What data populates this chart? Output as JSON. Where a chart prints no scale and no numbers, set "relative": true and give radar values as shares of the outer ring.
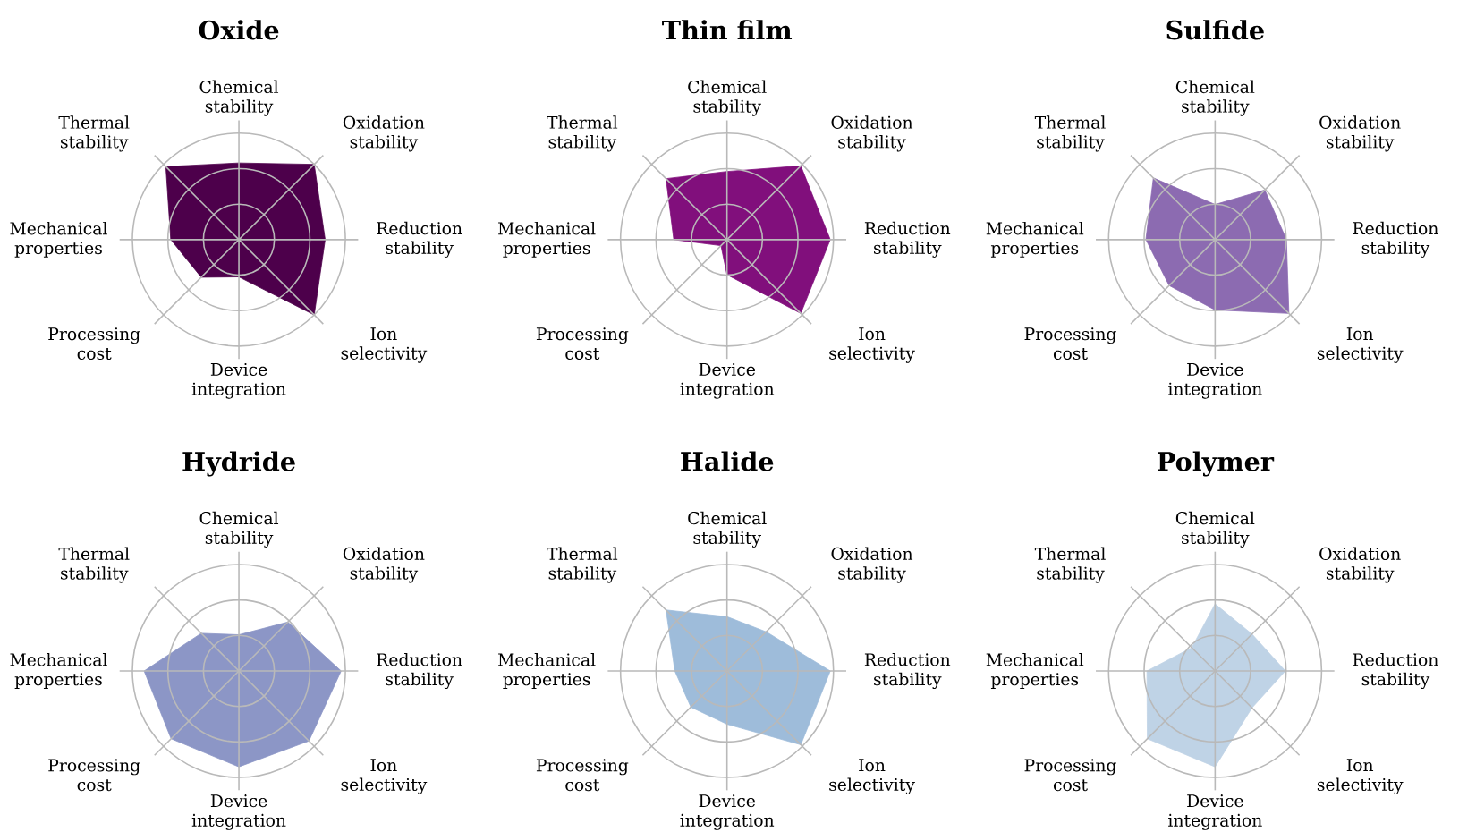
{
  "chart_data": [
    {
      "type": "radar",
      "title": "Oxide",
      "relative": true,
      "grid": true,
      "categories": [
        "Chemical stability",
        "Oxidation stability",
        "Reduction stability",
        "Ion selectivity",
        "Device integration",
        "Processing cost",
        "Mechanical properties",
        "Thermal stability"
      ],
      "series": [
        {
          "color": "#4d004b",
          "values": [
            0.72,
            1.0,
            0.81,
            1.0,
            0.35,
            0.5,
            0.64,
            0.97
          ]
        }
      ]
    },
    {
      "type": "radar",
      "title": "Thin film",
      "relative": true,
      "grid": true,
      "categories": [
        "Chemical stability",
        "Oxidation stability",
        "Reduction stability",
        "Ion selectivity",
        "Device integration",
        "Processing cost",
        "Mechanical properties",
        "Thermal stability"
      ],
      "series": [
        {
          "color": "#810f7c",
          "values": [
            0.64,
            0.98,
            0.97,
            0.98,
            0.33,
            0.08,
            0.5,
            0.81
          ]
        }
      ]
    },
    {
      "type": "radar",
      "title": "Sulfide",
      "relative": true,
      "grid": true,
      "categories": [
        "Chemical stability",
        "Oxidation stability",
        "Reduction stability",
        "Ion selectivity",
        "Device integration",
        "Processing cost",
        "Mechanical properties",
        "Thermal stability"
      ],
      "series": [
        {
          "color": "#8c6bb1",
          "values": [
            0.33,
            0.66,
            0.67,
            0.98,
            0.66,
            0.61,
            0.65,
            0.82
          ]
        }
      ]
    },
    {
      "type": "radar",
      "title": "Hydride",
      "relative": true,
      "grid": true,
      "categories": [
        "Chemical stability",
        "Oxidation stability",
        "Reduction stability",
        "Ion selectivity",
        "Device integration",
        "Processing cost",
        "Mechanical properties",
        "Thermal stability"
      ],
      "series": [
        {
          "color": "#8c96c6",
          "values": [
            0.34,
            0.65,
            0.96,
            0.93,
            0.9,
            0.9,
            0.89,
            0.5
          ]
        }
      ]
    },
    {
      "type": "radar",
      "title": "Halide",
      "relative": true,
      "grid": true,
      "categories": [
        "Chemical stability",
        "Oxidation stability",
        "Reduction stability",
        "Ion selectivity",
        "Device integration",
        "Processing cost",
        "Mechanical properties",
        "Thermal stability"
      ],
      "series": [
        {
          "color": "#9ebcda",
          "values": [
            0.51,
            0.52,
            0.97,
            0.98,
            0.5,
            0.48,
            0.49,
            0.81
          ]
        }
      ]
    },
    {
      "type": "radar",
      "title": "Polymer",
      "relative": true,
      "grid": true,
      "categories": [
        "Chemical stability",
        "Oxidation stability",
        "Reduction stability",
        "Ion selectivity",
        "Device integration",
        "Processing cost",
        "Mechanical properties",
        "Thermal stability"
      ],
      "series": [
        {
          "color": "#bfd3e6",
          "values": [
            0.63,
            0.49,
            0.66,
            0.49,
            0.9,
            0.9,
            0.64,
            0.31
          ]
        }
      ]
    }
  ]
}
